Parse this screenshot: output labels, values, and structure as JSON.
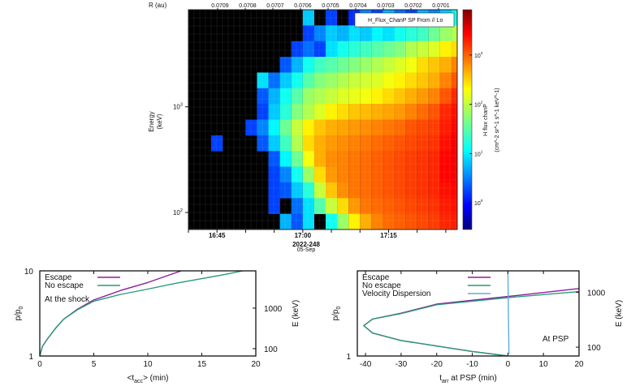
{
  "chart_data": [
    {
      "type": "heatmap",
      "legend_label": "H_Flux_ChanP SP From // Lo",
      "ylabel": "Energy",
      "yunit": "(keV)",
      "yscale": "log",
      "ylim_keV": [
        69,
        8300
      ],
      "yticks": [
        {
          "base": "10",
          "exp": "2",
          "value": 100
        },
        {
          "base": "10",
          "exp": "3",
          "value": 1000
        }
      ],
      "xlim": [
        "16:40",
        "17:27"
      ],
      "xticks": [
        "16:45",
        "17:00",
        "17:15"
      ],
      "xdate": "2022-248",
      "xdate2": "05-Sep",
      "top_axis": {
        "label": "R (au)",
        "ticks": [
          "0.0709",
          "0.0708",
          "0.0707",
          "0.0706",
          "0.0705",
          "0.0704",
          "0.0703",
          "0.0702",
          "0.0701"
        ]
      },
      "colorbar": {
        "label": "H flux chanP",
        "unit": "(cm^-2 sr^-1 s^-1 keV^-1)",
        "scale": "log",
        "colormap": "jet",
        "zlim_log10": [
          -0.54,
          3.92
        ],
        "ticks": [
          {
            "base": "10",
            "exp": "3",
            "value": 3
          },
          {
            "base": "10",
            "exp": "2",
            "value": 2
          },
          {
            "base": "10",
            "exp": "1",
            "value": 1
          },
          {
            "base": "10",
            "exp": "0",
            "value": 0
          }
        ]
      },
      "no_data_color": "#000000",
      "times": [
        "16:40",
        "16:42",
        "16:44",
        "16:46",
        "16:48",
        "16:50",
        "16:52",
        "16:54",
        "16:56",
        "16:58",
        "17:00",
        "17:02",
        "17:04",
        "17:06",
        "17:08",
        "17:10",
        "17:12",
        "17:14",
        "17:16",
        "17:18",
        "17:20",
        "17:22",
        "17:24",
        "17:26"
      ],
      "energies_keV": [
        7000,
        5000,
        3550,
        2500,
        1800,
        1260,
        900,
        630,
        450,
        320,
        230,
        160,
        115,
        82
      ],
      "flux_log10": [
        [
          null,
          null,
          null,
          null,
          null,
          null,
          null,
          null,
          null,
          null,
          0.9,
          null,
          0.3,
          null,
          0.2,
          0.6,
          0.3,
          0.8,
          0.5,
          0.3,
          0.8,
          0.6,
          0.9,
          1.2
        ],
        [
          null,
          null,
          null,
          null,
          null,
          null,
          null,
          null,
          null,
          null,
          0.3,
          0.6,
          0.9,
          0.8,
          1.0,
          0.9,
          1.1,
          1.0,
          1.2,
          1.3,
          1.4,
          1.6,
          1.8,
          1.9
        ],
        [
          null,
          null,
          null,
          null,
          null,
          null,
          null,
          null,
          null,
          0.3,
          0.5,
          0.3,
          1.0,
          1.2,
          1.3,
          1.4,
          1.5,
          1.6,
          1.7,
          1.9,
          2.0,
          2.1,
          2.3,
          2.4
        ],
        [
          null,
          null,
          null,
          null,
          null,
          null,
          null,
          null,
          0.4,
          0.8,
          1.2,
          1.4,
          1.5,
          1.6,
          1.7,
          1.8,
          1.9,
          2.0,
          2.1,
          2.2,
          2.4,
          2.5,
          2.6,
          2.8
        ],
        [
          null,
          null,
          null,
          null,
          null,
          null,
          1.0,
          0.5,
          0.9,
          1.2,
          1.5,
          1.7,
          1.8,
          1.9,
          2.0,
          2.05,
          2.1,
          2.2,
          2.3,
          2.4,
          2.5,
          2.6,
          2.8,
          3.0
        ],
        [
          null,
          null,
          null,
          null,
          null,
          null,
          0.4,
          0.8,
          1.2,
          1.5,
          1.8,
          1.9,
          2.0,
          2.1,
          2.15,
          2.2,
          2.3,
          2.4,
          2.5,
          2.6,
          2.7,
          2.8,
          3.0,
          3.2
        ],
        [
          null,
          null,
          null,
          null,
          null,
          null,
          0.3,
          0.9,
          1.3,
          1.7,
          1.9,
          2.1,
          2.3,
          2.4,
          2.5,
          2.55,
          2.6,
          2.65,
          2.7,
          2.8,
          2.9,
          3.0,
          3.2,
          3.3
        ],
        [
          null,
          null,
          null,
          null,
          null,
          0.3,
          0.6,
          1.1,
          1.6,
          2.0,
          2.3,
          2.5,
          2.6,
          2.65,
          2.7,
          2.75,
          2.8,
          2.85,
          2.9,
          3.0,
          3.05,
          3.1,
          3.25,
          3.35
        ],
        [
          null,
          null,
          0.3,
          null,
          null,
          null,
          0.4,
          0.9,
          1.4,
          1.9,
          2.4,
          2.6,
          2.7,
          2.75,
          2.8,
          2.85,
          2.9,
          2.95,
          3.0,
          3.05,
          3.1,
          3.15,
          3.3,
          3.4
        ],
        [
          null,
          null,
          null,
          null,
          null,
          null,
          null,
          0.4,
          1.1,
          1.6,
          2.2,
          2.6,
          2.75,
          2.8,
          2.85,
          2.9,
          2.95,
          3.0,
          3.05,
          3.1,
          3.15,
          3.2,
          3.35,
          3.4
        ],
        [
          null,
          null,
          null,
          null,
          null,
          null,
          null,
          0.3,
          0.6,
          1.2,
          1.8,
          2.4,
          2.7,
          2.8,
          2.85,
          2.9,
          2.95,
          3.0,
          3.05,
          3.1,
          3.15,
          3.2,
          3.35,
          3.4
        ],
        [
          null,
          null,
          null,
          null,
          null,
          null,
          null,
          0.3,
          0.4,
          0.9,
          1.3,
          2.0,
          2.5,
          2.75,
          2.85,
          2.9,
          2.95,
          3.0,
          3.05,
          3.1,
          3.15,
          3.2,
          3.3,
          3.35
        ],
        [
          null,
          null,
          null,
          null,
          null,
          null,
          null,
          0.3,
          null,
          0.5,
          1.0,
          1.5,
          2.0,
          2.4,
          2.7,
          2.85,
          2.9,
          2.95,
          3.0,
          3.05,
          3.1,
          3.15,
          3.25,
          3.3
        ],
        [
          null,
          null,
          null,
          null,
          null,
          null,
          null,
          null,
          0.8,
          0.4,
          1.0,
          null,
          1.2,
          1.8,
          2.3,
          2.6,
          2.8,
          2.9,
          2.95,
          3.0,
          3.05,
          3.1,
          3.2,
          3.25
        ]
      ]
    },
    {
      "type": "line",
      "xlabel_pre": "<t",
      "xlabel_sub": "acc",
      "xlabel_post": "> (min)",
      "ylabel_pre": "p/p",
      "ylabel_sub": "0",
      "y2label": "E (keV)",
      "xlim": [
        0,
        20
      ],
      "ylim": [
        1,
        10
      ],
      "yscale": "log",
      "xticks": [
        "0",
        "5",
        "10",
        "15",
        "20"
      ],
      "yticks": [
        "1",
        "10"
      ],
      "y2ticks": [
        {
          "label": "1000",
          "p": 3.65
        },
        {
          "label": "100",
          "p": 1.22
        }
      ],
      "annotation": "At the shock",
      "legend_placement": "top-left",
      "series": [
        {
          "name": "Escape",
          "color": "#8e1c9e",
          "x": [
            0,
            0.25,
            0.7,
            1.5,
            2.2,
            3.5,
            5,
            7.5,
            10,
            11.5,
            13.1
          ],
          "y": [
            1,
            1.3,
            1.58,
            2.15,
            2.7,
            3.55,
            4.55,
            5.9,
            7.3,
            8.5,
            10
          ]
        },
        {
          "name": "No escape",
          "color": "#2a9a78",
          "x": [
            0,
            0.25,
            0.7,
            1.5,
            2.2,
            3.5,
            5,
            7.5,
            10,
            12.5,
            15,
            17,
            18.8
          ],
          "y": [
            1,
            1.3,
            1.58,
            2.15,
            2.7,
            3.5,
            4.4,
            5.3,
            6.1,
            7.1,
            8.1,
            9.0,
            10
          ]
        }
      ]
    },
    {
      "type": "line",
      "xlabel_pre": "t",
      "xlabel_sub": "arr",
      "xlabel_post": " at PSP (min)",
      "ylabel_pre": "p/p",
      "ylabel_sub": "0",
      "y2label": "E (keV)",
      "xlim": [
        -42.3,
        20
      ],
      "ylim": [
        1,
        10
      ],
      "yscale": "log",
      "xticks": [
        "-40",
        "-30",
        "-20",
        "-10",
        "0",
        "10",
        "20"
      ],
      "yticks": [
        "1"
      ],
      "y2ticks": [
        {
          "label": "1000",
          "p": 5.6
        },
        {
          "label": "100",
          "p": 1.27
        }
      ],
      "annotation": "At PSP",
      "legend_placement": "top-left",
      "series": [
        {
          "name": "Escape",
          "color": "#8e1c9e",
          "x": [
            0,
            -10,
            -20,
            -30,
            -38,
            -40.5,
            -38,
            -30,
            -20,
            0,
            20
          ],
          "y": [
            1.0,
            1.13,
            1.31,
            1.52,
            1.86,
            2.27,
            2.72,
            3.18,
            4.07,
            5.0,
            6.2
          ]
        },
        {
          "name": "No escape",
          "color": "#2a9a78",
          "x": [
            0,
            -10,
            -20,
            -30,
            -38,
            -40.5,
            -38,
            -30,
            -20,
            0,
            20
          ],
          "y": [
            1.0,
            1.13,
            1.31,
            1.52,
            1.86,
            2.27,
            2.72,
            3.15,
            4.0,
            4.85,
            5.7
          ]
        },
        {
          "name": "Velocity Dispersion",
          "color": "#5fb0da",
          "x": [
            0,
            0.3
          ],
          "y": [
            10,
            1.05
          ]
        }
      ]
    }
  ]
}
